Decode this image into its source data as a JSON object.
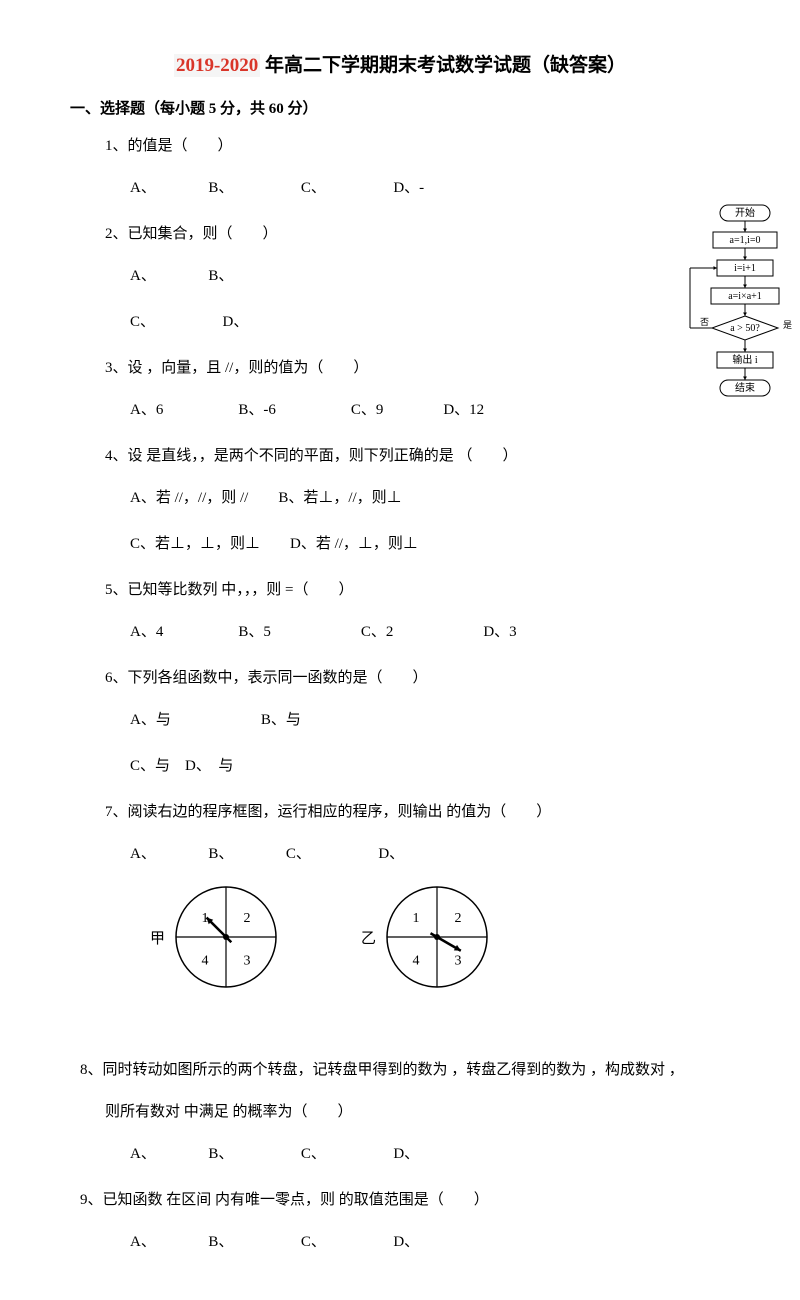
{
  "title_red": "2019-2020",
  "title_black": " 年高二下学期期末考试数学试题（缺答案）",
  "section1": "一、选择题（每小题 5 分，共 60 分）",
  "q1": "1、的值是（　　）",
  "q1_opts": "A、　　　　B、　　　　　C、　　　　　D、-",
  "q2": "2、已知集合，则（　　）",
  "q2_opts1": "A、　　　　B、",
  "q2_opts2": "C、　　　　　D、",
  "q3": "3、设 ，向量，且 //，则的值为（　　）",
  "q3_opts": "A、6　　　　　B、-6　　　　　C、9　　　　D、12",
  "q4": "4、设 是直线，，是两个不同的平面，则下列正确的是 （　　）",
  "q4_opts1": "A、若 //，//，则 //　　B、若⊥，//，则⊥",
  "q4_opts2": "C、若⊥，⊥，则⊥　　D、若 //，⊥，则⊥",
  "q5": "5、已知等比数列 中，，，则 =（　　）",
  "q5_opts": "A、4　　　　　B、5　　　　　　C、2　　　　　　D、3",
  "q6": "6、下列各组函数中，表示同一函数的是（　　）",
  "q6_opts1": "A、与　　　　　　B、与",
  "q6_opts2": "C、与　D、　与",
  "q7": "7、阅读右边的程序框图，运行相应的程序，则输出 的值为（　　）",
  "q7_opts": "A、　　　　B、　　　　C、　　　　　D、",
  "q8": "8、同时转动如图所示的两个转盘，记转盘甲得到的数为 ，转盘乙得到的数为 ，构成数对 ，",
  "q8b": "则所有数对 中满足 的概率为（　　）",
  "q8_opts": "A、　　　　B、　　　　　C、　　　　　D、",
  "q9": "9、已知函数 在区间 内有唯一零点，则 的取值范围是（　　）",
  "q9_opts": "A、　　　　B、　　　　　C、　　　　　D、",
  "spinner_jia": "甲",
  "spinner_yi": "乙",
  "flowchart": {
    "start": "开始",
    "step1": "a=1,i=0",
    "step2": "i=i+1",
    "step3": "a=i×a+1",
    "cond": "a > 50?",
    "yes": "是",
    "no": "否",
    "out": "输出 i",
    "end": "结束",
    "stroke": "#000000",
    "fill": "#ffffff",
    "font": 10
  },
  "spinner": {
    "radius": 50,
    "stroke": "#000000",
    "fill": "#ffffff",
    "labels": [
      "1",
      "2",
      "3",
      "4"
    ],
    "arrow_jia_deg": 135,
    "arrow_yi_deg": -30,
    "label_font": 14
  }
}
